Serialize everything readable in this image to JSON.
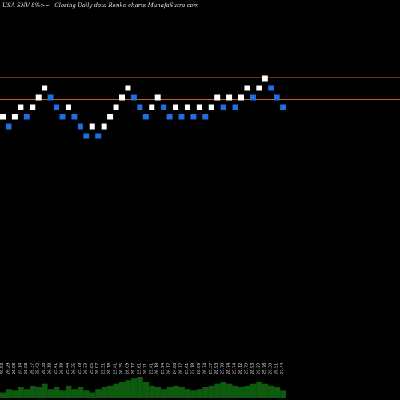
{
  "header": {
    "symbol": "USA SNV 8%>~",
    "caption": "Closing Daily data Renko charts MunafaSutra.com"
  },
  "colors": {
    "background": "#000000",
    "up_brick": "#ffffff",
    "down_brick": "#1e6fe0",
    "level_line": "#c8641e",
    "volume": "#0e5a0e"
  },
  "chart_data": {
    "type": "renko",
    "price_axis": [
      19.5,
      27.5
    ],
    "levels": [
      25.96,
      25.41
    ],
    "bricks": [
      {
        "dir": "up",
        "value": 24.98
      },
      {
        "dir": "down",
        "value": 24.74
      },
      {
        "dir": "up",
        "value": 24.98
      },
      {
        "dir": "up",
        "value": 25.22
      },
      {
        "dir": "down",
        "value": 24.98
      },
      {
        "dir": "up",
        "value": 25.22
      },
      {
        "dir": "up",
        "value": 25.46
      },
      {
        "dir": "up",
        "value": 25.7
      },
      {
        "dir": "down",
        "value": 25.46
      },
      {
        "dir": "down",
        "value": 25.22
      },
      {
        "dir": "down",
        "value": 24.98
      },
      {
        "dir": "up",
        "value": 25.22
      },
      {
        "dir": "down",
        "value": 24.98
      },
      {
        "dir": "down",
        "value": 24.74
      },
      {
        "dir": "down",
        "value": 24.5
      },
      {
        "dir": "up",
        "value": 24.74
      },
      {
        "dir": "down",
        "value": 24.5
      },
      {
        "dir": "up",
        "value": 24.74
      },
      {
        "dir": "up",
        "value": 24.98
      },
      {
        "dir": "up",
        "value": 25.22
      },
      {
        "dir": "up",
        "value": 25.46
      },
      {
        "dir": "up",
        "value": 25.7
      },
      {
        "dir": "down",
        "value": 25.46
      },
      {
        "dir": "down",
        "value": 25.22
      },
      {
        "dir": "down",
        "value": 24.98
      },
      {
        "dir": "up",
        "value": 25.22
      },
      {
        "dir": "up",
        "value": 25.46
      },
      {
        "dir": "down",
        "value": 25.22
      },
      {
        "dir": "down",
        "value": 24.98
      },
      {
        "dir": "up",
        "value": 25.22
      },
      {
        "dir": "down",
        "value": 24.98
      },
      {
        "dir": "up",
        "value": 25.22
      },
      {
        "dir": "down",
        "value": 24.98
      },
      {
        "dir": "up",
        "value": 25.22
      },
      {
        "dir": "down",
        "value": 24.98
      },
      {
        "dir": "up",
        "value": 25.22
      },
      {
        "dir": "up",
        "value": 25.46
      },
      {
        "dir": "down",
        "value": 25.22
      },
      {
        "dir": "up",
        "value": 25.46
      },
      {
        "dir": "down",
        "value": 25.22
      },
      {
        "dir": "up",
        "value": 25.46
      },
      {
        "dir": "up",
        "value": 25.7
      },
      {
        "dir": "down",
        "value": 25.46
      },
      {
        "dir": "up",
        "value": 25.7
      },
      {
        "dir": "up",
        "value": 25.94
      },
      {
        "dir": "down",
        "value": 25.7
      },
      {
        "dir": "down",
        "value": 25.46
      },
      {
        "dir": "down",
        "value": 25.22
      }
    ],
    "volume_labels": [
      "40.93",
      "26.29",
      "26.08",
      "24.14",
      "26.08",
      "26.37",
      "25.42",
      "26.38",
      "26.18",
      "25.41",
      "26.18",
      "25.44",
      "26.25",
      "25.79",
      "26.33",
      "25.85",
      "26.07",
      "25.31",
      "26.18",
      "25.41",
      "26.35",
      "26.09",
      "26.17",
      "25.61",
      "26.71",
      "25.41",
      "26.18",
      "25.94",
      "26.17",
      "24.08",
      "26.17",
      "25.61",
      "27.18",
      "26.09",
      "26.74",
      "25.37",
      "26.93",
      "25.78",
      "26.74",
      "25.74",
      "26.12",
      "25.79",
      "26.93",
      "26.29",
      "25.78",
      "26.30",
      "26.51",
      "27.44"
    ],
    "volumes": [
      3,
      5,
      4,
      6,
      5,
      7,
      6,
      8,
      5,
      6,
      4,
      7,
      5,
      6,
      4,
      3,
      5,
      6,
      7,
      8,
      9,
      10,
      11,
      12,
      9,
      7,
      6,
      5,
      6,
      7,
      6,
      5,
      4,
      5,
      6,
      7,
      8,
      9,
      8,
      7,
      6,
      7,
      8,
      9,
      8,
      7,
      6,
      4
    ]
  }
}
